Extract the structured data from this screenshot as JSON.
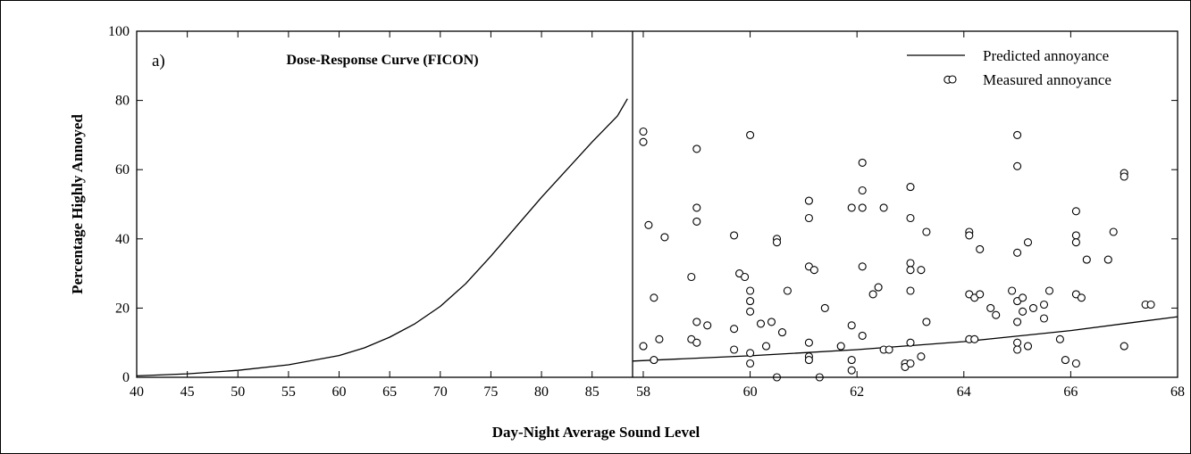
{
  "figure": {
    "ylabel": "Percentage Highly Annoyed",
    "xlabel": "Day-Night Average Sound Level",
    "colors": {
      "line": "#000000",
      "marker_edge": "#000000",
      "background": "#ffffff"
    }
  },
  "chart_data": [
    {
      "type": "line",
      "panel_label": "a)",
      "title": "Dose-Response Curve (FICON)",
      "xlabel": "Day-Night Average Sound Level",
      "ylabel": "Percentage Highly Annoyed",
      "xlim": [
        40,
        89
      ],
      "ylim": [
        0,
        100
      ],
      "x_ticks": [
        40,
        45,
        50,
        55,
        60,
        65,
        70,
        75,
        80,
        85
      ],
      "y_ticks": [
        0,
        20,
        40,
        60,
        80,
        100
      ],
      "grid": false,
      "series": [
        {
          "x": [
            40,
            45,
            50,
            55,
            60,
            62.5,
            65,
            67.5,
            70,
            72.5,
            75,
            77.5,
            80,
            82.5,
            85,
            87.5,
            88.5
          ],
          "y": [
            0.4,
            1.0,
            2.0,
            3.6,
            6.3,
            8.5,
            11.6,
            15.5,
            20.5,
            27.0,
            35.0,
            43.5,
            52.0,
            60.0,
            68.0,
            75.5,
            80.5
          ]
        }
      ]
    },
    {
      "type": "scatter",
      "xlim": [
        57.8,
        68
      ],
      "ylim": [
        0,
        100
      ],
      "x_ticks": [
        58,
        60,
        62,
        64,
        66,
        68
      ],
      "grid": false,
      "legend": {
        "position": "top-right",
        "entries": [
          "Predicted annoyance",
          "Measured annoyance"
        ]
      },
      "series": [
        {
          "name": "Predicted annoyance",
          "type": "line",
          "x": [
            57.8,
            60,
            62,
            64,
            66,
            68
          ],
          "y": [
            4.7,
            6.2,
            8.0,
            10.3,
            13.5,
            17.5
          ]
        },
        {
          "name": "Measured annoyance",
          "type": "scatter",
          "points": [
            [
              58,
              71
            ],
            [
              58,
              68
            ],
            [
              58.1,
              44
            ],
            [
              58.2,
              23
            ],
            [
              58.2,
              5
            ],
            [
              58.3,
              11
            ],
            [
              58,
              9
            ],
            [
              58.4,
              40.5
            ],
            [
              58.9,
              29
            ],
            [
              58.9,
              11
            ],
            [
              59,
              66
            ],
            [
              59,
              49
            ],
            [
              59,
              45
            ],
            [
              59,
              16
            ],
            [
              59,
              10
            ],
            [
              59.2,
              15
            ],
            [
              59.7,
              41
            ],
            [
              59.8,
              30
            ],
            [
              59.9,
              29
            ],
            [
              59.7,
              14
            ],
            [
              59.7,
              8
            ],
            [
              60,
              70
            ],
            [
              60,
              25
            ],
            [
              60,
              22
            ],
            [
              60,
              19
            ],
            [
              60,
              7
            ],
            [
              60,
              4
            ],
            [
              60.2,
              15.5
            ],
            [
              60.3,
              9
            ],
            [
              60.4,
              16
            ],
            [
              60.5,
              40
            ],
            [
              60.5,
              39
            ],
            [
              60.6,
              13
            ],
            [
              60.7,
              25
            ],
            [
              60.5,
              0
            ],
            [
              61.1,
              51
            ],
            [
              61.1,
              46
            ],
            [
              61.1,
              32
            ],
            [
              61.2,
              31
            ],
            [
              61.4,
              20
            ],
            [
              61.1,
              10
            ],
            [
              61.1,
              6
            ],
            [
              61.1,
              5
            ],
            [
              61.3,
              0
            ],
            [
              61.7,
              9
            ],
            [
              61.9,
              49
            ],
            [
              61.9,
              15
            ],
            [
              61.9,
              5
            ],
            [
              61.9,
              2
            ],
            [
              62.1,
              62
            ],
            [
              62.1,
              54
            ],
            [
              62.1,
              49
            ],
            [
              62.1,
              32
            ],
            [
              62.1,
              12
            ],
            [
              62.3,
              24
            ],
            [
              62.4,
              26
            ],
            [
              62.5,
              49
            ],
            [
              62.5,
              8
            ],
            [
              62.6,
              8
            ],
            [
              62.9,
              4
            ],
            [
              62.9,
              3
            ],
            [
              63,
              55
            ],
            [
              63,
              46
            ],
            [
              63,
              33
            ],
            [
              63,
              31
            ],
            [
              63,
              25
            ],
            [
              63,
              10
            ],
            [
              63,
              4
            ],
            [
              63.2,
              31
            ],
            [
              63.3,
              42
            ],
            [
              63.3,
              16
            ],
            [
              63.2,
              6
            ],
            [
              64.1,
              42
            ],
            [
              64.1,
              41
            ],
            [
              64.1,
              24
            ],
            [
              64.2,
              23
            ],
            [
              64.3,
              24
            ],
            [
              64.3,
              37
            ],
            [
              64.1,
              11
            ],
            [
              64.2,
              11
            ],
            [
              64.5,
              20
            ],
            [
              64.6,
              18
            ],
            [
              64.9,
              25
            ],
            [
              65,
              70
            ],
            [
              65,
              61
            ],
            [
              65,
              36
            ],
            [
              65,
              22
            ],
            [
              65.1,
              23
            ],
            [
              65.1,
              19
            ],
            [
              65,
              16
            ],
            [
              65,
              10
            ],
            [
              65,
              8
            ],
            [
              65.2,
              39
            ],
            [
              65.3,
              20
            ],
            [
              65.2,
              9
            ],
            [
              65.5,
              21
            ],
            [
              65.5,
              17
            ],
            [
              65.6,
              25
            ],
            [
              65.8,
              11
            ],
            [
              65.9,
              5
            ],
            [
              66.1,
              48
            ],
            [
              66.1,
              41
            ],
            [
              66.1,
              39
            ],
            [
              66.1,
              24
            ],
            [
              66.2,
              23
            ],
            [
              66.3,
              34
            ],
            [
              66.1,
              4
            ],
            [
              66.7,
              34
            ],
            [
              66.8,
              42
            ],
            [
              67,
              59
            ],
            [
              67,
              58
            ],
            [
              67,
              9
            ],
            [
              67.4,
              21
            ],
            [
              67.5,
              21
            ],
            [
              63.7,
              86
            ]
          ]
        }
      ]
    }
  ]
}
